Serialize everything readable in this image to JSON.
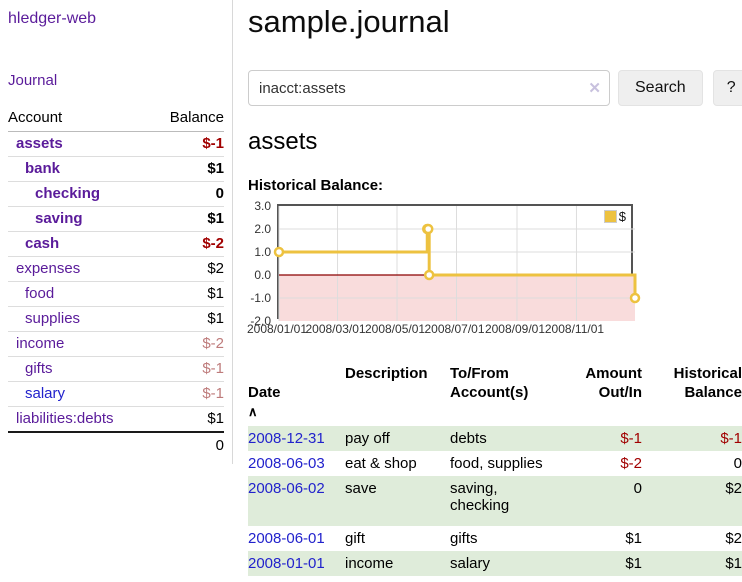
{
  "app": {
    "title": "hledger-web"
  },
  "nav": {
    "journal": "Journal"
  },
  "theme": {
    "link_purple": "#5a1b9a",
    "link_blue": "#2222cc",
    "negative": "#a10000",
    "negative_muted": "#be7b7b",
    "row_green": "#dfecda",
    "series_yellow": "#edc240"
  },
  "sidebar": {
    "account_col": "Account",
    "balance_col": "Balance",
    "accounts": [
      {
        "name": "assets",
        "balance": "$-1"
      },
      {
        "name": "bank",
        "balance": "$1"
      },
      {
        "name": "checking",
        "balance": "0"
      },
      {
        "name": "saving",
        "balance": "$1"
      },
      {
        "name": "cash",
        "balance": "$-2"
      },
      {
        "name": "expenses",
        "balance": "$2"
      },
      {
        "name": "food",
        "balance": "$1"
      },
      {
        "name": "supplies",
        "balance": "$1"
      },
      {
        "name": "income",
        "balance": "$-2"
      },
      {
        "name": "gifts",
        "balance": "$-1"
      },
      {
        "name": "salary",
        "balance": "$-1"
      },
      {
        "name": "liabilities:debts",
        "balance": "$1"
      }
    ],
    "total": "0"
  },
  "header": {
    "title": "sample.journal"
  },
  "search": {
    "value": "inacct:assets",
    "clear_icon": "✕",
    "search_button": "Search",
    "help_button": "?"
  },
  "account_page": {
    "heading": "assets"
  },
  "chart_data": {
    "type": "line",
    "step": true,
    "title": "Historical Balance:",
    "series": [
      {
        "name": "$",
        "color": "#edc240",
        "points": [
          {
            "date": "2008-01-01",
            "value": 1
          },
          {
            "date": "2008-06-01",
            "value": 2
          },
          {
            "date": "2008-06-02",
            "value": 2
          },
          {
            "date": "2008-06-03",
            "value": 0
          },
          {
            "date": "2008-12-31",
            "value": -1
          }
        ]
      }
    ],
    "x_ticks": [
      {
        "date": "2008-01-01",
        "label": "2008/01/01"
      },
      {
        "date": "2008-03-01",
        "label": "2008/03/01"
      },
      {
        "date": "2008-05-01",
        "label": "2008/05/01"
      },
      {
        "date": "2008-07-01",
        "label": "2008/07/01"
      },
      {
        "date": "2008-09-01",
        "label": "2008/09/01"
      },
      {
        "date": "2008-11-01",
        "label": "2008/11/01"
      }
    ],
    "y_ticks": [
      {
        "value": 3,
        "label": "3.0"
      },
      {
        "value": 2,
        "label": "2.0"
      },
      {
        "value": 1,
        "label": "1.0"
      },
      {
        "value": 0,
        "label": "0.0"
      },
      {
        "value": -1,
        "label": "-1.0"
      },
      {
        "value": -2,
        "label": "-2.0"
      }
    ],
    "ylim": [
      -2,
      3
    ],
    "xlim": [
      "2008-01-01",
      "2008-12-31"
    ],
    "grid": true,
    "legend_position": "top-right",
    "colors": {
      "negative_region": "#f9dcdc",
      "zero_line": "#8b0000",
      "grid": "#dddddd",
      "border": "#545454"
    }
  },
  "register": {
    "headers": {
      "date": "Date",
      "sort_icon": "∧",
      "description": "Description",
      "tofrom": "To/From\nAccount(s)",
      "amount": "Amount\nOut/In",
      "balance": "Historical\nBalance"
    },
    "rows": [
      {
        "date": "2008-12-31",
        "description": "pay off",
        "accounts": "debts",
        "amount": "$-1",
        "balance": "$-1"
      },
      {
        "date": "2008-06-03",
        "description": "eat & shop",
        "accounts": "food, supplies",
        "amount": "$-2",
        "balance": "0"
      },
      {
        "date": "2008-06-02",
        "description": "save",
        "accounts": "saving,\nchecking",
        "amount": "0",
        "balance": "$2"
      },
      {
        "date": "2008-06-01",
        "description": "gift",
        "accounts": "gifts",
        "amount": "$1",
        "balance": "$2"
      },
      {
        "date": "2008-01-01",
        "description": "income",
        "accounts": "salary",
        "amount": "$1",
        "balance": "$1"
      }
    ]
  }
}
